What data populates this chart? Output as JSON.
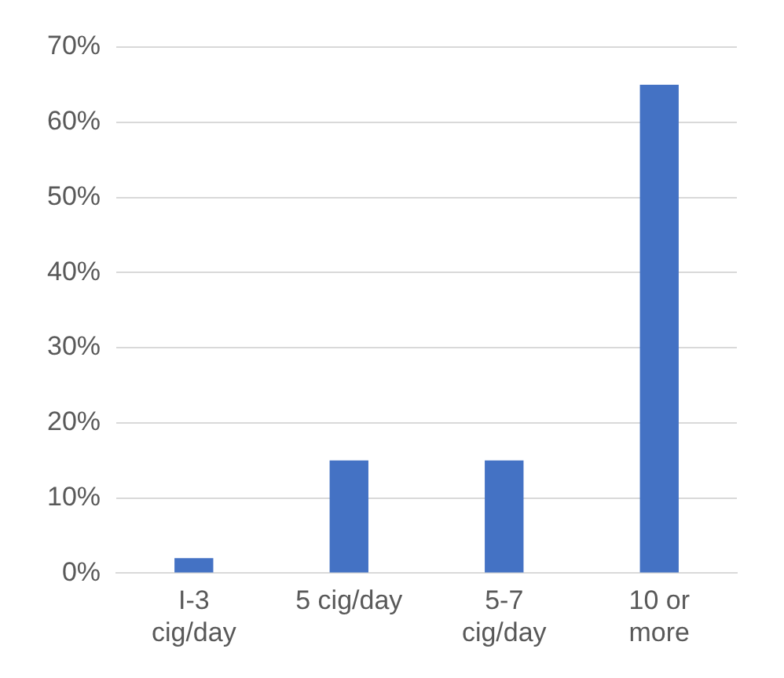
{
  "chart_data": {
    "type": "bar",
    "categories": [
      "I-3 cig/day",
      "5 cig/day",
      "5-7 cig/day",
      "10 or more"
    ],
    "values": [
      2,
      15,
      15,
      65
    ],
    "color": "#4472c4",
    "ylim": [
      0,
      70
    ],
    "yticks": [
      {
        "value": 0,
        "label": "0%"
      },
      {
        "value": 10,
        "label": "10%"
      },
      {
        "value": 20,
        "label": "20%"
      },
      {
        "value": 30,
        "label": "30%"
      },
      {
        "value": 40,
        "label": "40%"
      },
      {
        "value": 50,
        "label": "50%"
      },
      {
        "value": 60,
        "label": "60%"
      },
      {
        "value": 70,
        "label": "70%"
      }
    ],
    "grid": "y",
    "legend": false
  }
}
